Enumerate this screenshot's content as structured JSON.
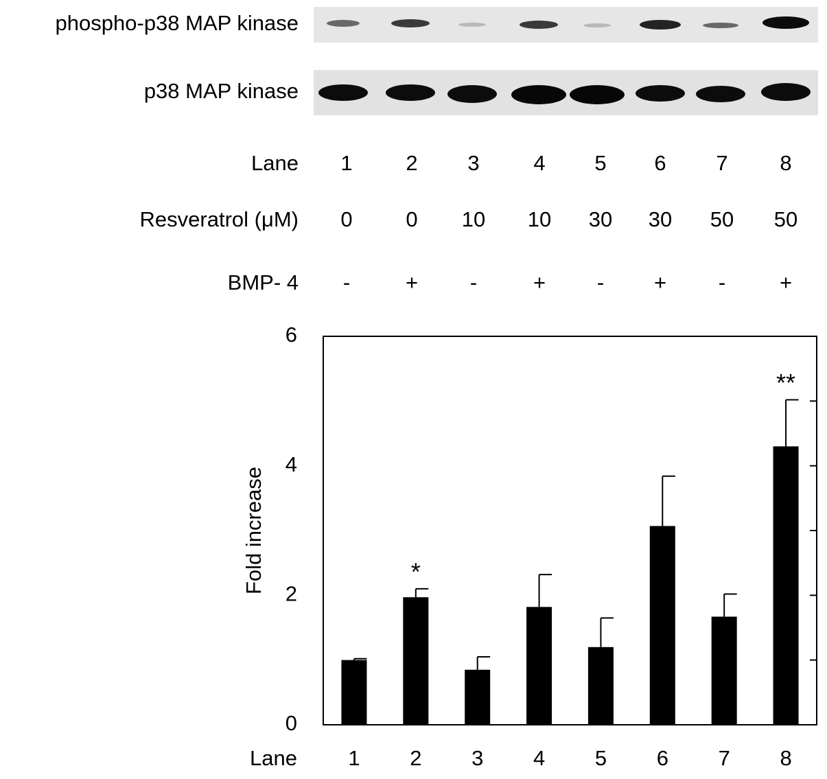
{
  "blot": {
    "bands": [
      "phospho-p38 MAP kinase",
      "p38 MAP kinase"
    ],
    "rows": [
      {
        "label": "Lane",
        "values": [
          1,
          2,
          3,
          4,
          5,
          6,
          7,
          8
        ]
      },
      {
        "label": "Resveratrol (μM)",
        "values": [
          0,
          0,
          10,
          10,
          30,
          30,
          50,
          50
        ]
      },
      {
        "label": "BMP- 4",
        "values": [
          "-",
          "+",
          "-",
          "+",
          "-",
          "+",
          "-",
          "+"
        ]
      }
    ]
  },
  "chart_data": {
    "type": "bar",
    "ylabel": "Fold increase",
    "xlabel": "Lane",
    "categories": [
      "1",
      "2",
      "3",
      "4",
      "5",
      "6",
      "7",
      "8"
    ],
    "values": [
      1.0,
      1.97,
      0.85,
      1.82,
      1.2,
      3.07,
      1.67,
      4.3
    ],
    "errors": [
      0.02,
      0.13,
      0.2,
      0.5,
      0.45,
      0.77,
      0.35,
      0.72
    ],
    "significance": [
      null,
      "*",
      null,
      null,
      null,
      null,
      null,
      "**"
    ],
    "color": "#000000",
    "ylim": [
      0,
      6
    ],
    "yticks": [
      0,
      2,
      4,
      6
    ],
    "minor_yticks": [
      1,
      3,
      5
    ]
  }
}
